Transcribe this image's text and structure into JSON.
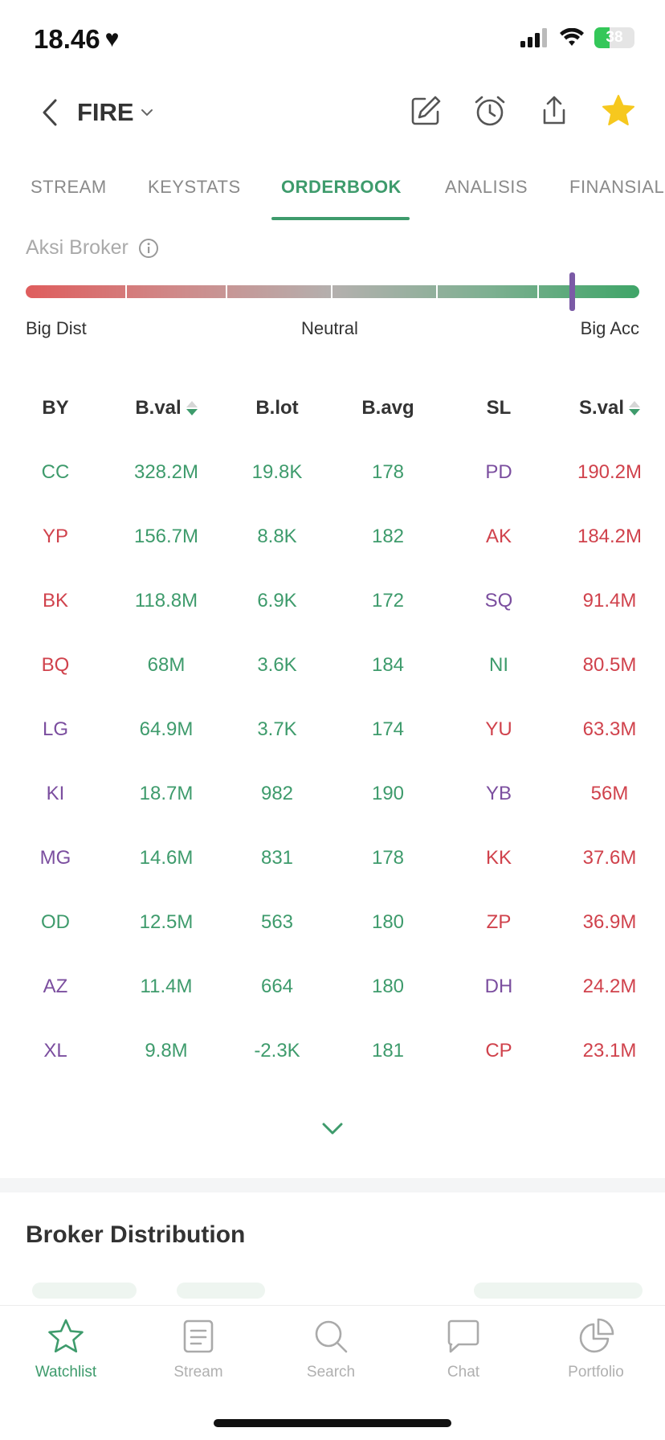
{
  "status_bar": {
    "time": "18.46",
    "battery": "38",
    "battery_level": 0.38
  },
  "header": {
    "ticker": "FIRE"
  },
  "tabs": [
    {
      "label": "STREAM",
      "active": false
    },
    {
      "label": "KEYSTATS",
      "active": false
    },
    {
      "label": "ORDERBOOK",
      "active": true
    },
    {
      "label": "ANALISIS",
      "active": false
    },
    {
      "label": "FINANSIAL",
      "active": false
    }
  ],
  "broker_action": {
    "title": "Aksi Broker",
    "labels": {
      "left": "Big Dist",
      "center": "Neutral",
      "right": "Big Acc"
    },
    "indicator_level": 0.89
  },
  "colors": {
    "accent": "#3e9b6c",
    "sell": "#d0424c",
    "foreign": "#7b4e9f",
    "gauge_marker": "#7b5aa6"
  },
  "table": {
    "headers": [
      "BY",
      "B.val",
      "B.lot",
      "B.avg",
      "SL",
      "S.val"
    ],
    "rows": [
      {
        "by": "CC",
        "by_color": "g",
        "bval": "328.2M",
        "blot": "19.8K",
        "bavg": "178",
        "sl": "PD",
        "sl_color": "p",
        "sval": "190.2M"
      },
      {
        "by": "YP",
        "by_color": "r",
        "bval": "156.7M",
        "blot": "8.8K",
        "bavg": "182",
        "sl": "AK",
        "sl_color": "r",
        "sval": "184.2M"
      },
      {
        "by": "BK",
        "by_color": "r",
        "bval": "118.8M",
        "blot": "6.9K",
        "bavg": "172",
        "sl": "SQ",
        "sl_color": "p",
        "sval": "91.4M"
      },
      {
        "by": "BQ",
        "by_color": "r",
        "bval": "68M",
        "blot": "3.6K",
        "bavg": "184",
        "sl": "NI",
        "sl_color": "g",
        "sval": "80.5M"
      },
      {
        "by": "LG",
        "by_color": "p",
        "bval": "64.9M",
        "blot": "3.7K",
        "bavg": "174",
        "sl": "YU",
        "sl_color": "r",
        "sval": "63.3M"
      },
      {
        "by": "KI",
        "by_color": "p",
        "bval": "18.7M",
        "blot": "982",
        "bavg": "190",
        "sl": "YB",
        "sl_color": "p",
        "sval": "56M"
      },
      {
        "by": "MG",
        "by_color": "p",
        "bval": "14.6M",
        "blot": "831",
        "bavg": "178",
        "sl": "KK",
        "sl_color": "r",
        "sval": "37.6M"
      },
      {
        "by": "OD",
        "by_color": "g",
        "bval": "12.5M",
        "blot": "563",
        "bavg": "180",
        "sl": "ZP",
        "sl_color": "r",
        "sval": "36.9M"
      },
      {
        "by": "AZ",
        "by_color": "p",
        "bval": "11.4M",
        "blot": "664",
        "bavg": "180",
        "sl": "DH",
        "sl_color": "p",
        "sval": "24.2M"
      },
      {
        "by": "XL",
        "by_color": "p",
        "bval": "9.8M",
        "blot": "-2.3K",
        "bavg": "181",
        "sl": "CP",
        "sl_color": "r",
        "sval": "23.1M"
      }
    ]
  },
  "sections": {
    "broker_distribution": "Broker Distribution"
  },
  "bottom_nav": [
    {
      "label": "Watchlist",
      "icon": "star-outline-icon",
      "active": true
    },
    {
      "label": "Stream",
      "icon": "document-icon",
      "active": false
    },
    {
      "label": "Search",
      "icon": "search-icon",
      "active": false
    },
    {
      "label": "Chat",
      "icon": "chat-bubble-icon",
      "active": false
    },
    {
      "label": "Portfolio",
      "icon": "pie-chart-icon",
      "active": false
    }
  ]
}
